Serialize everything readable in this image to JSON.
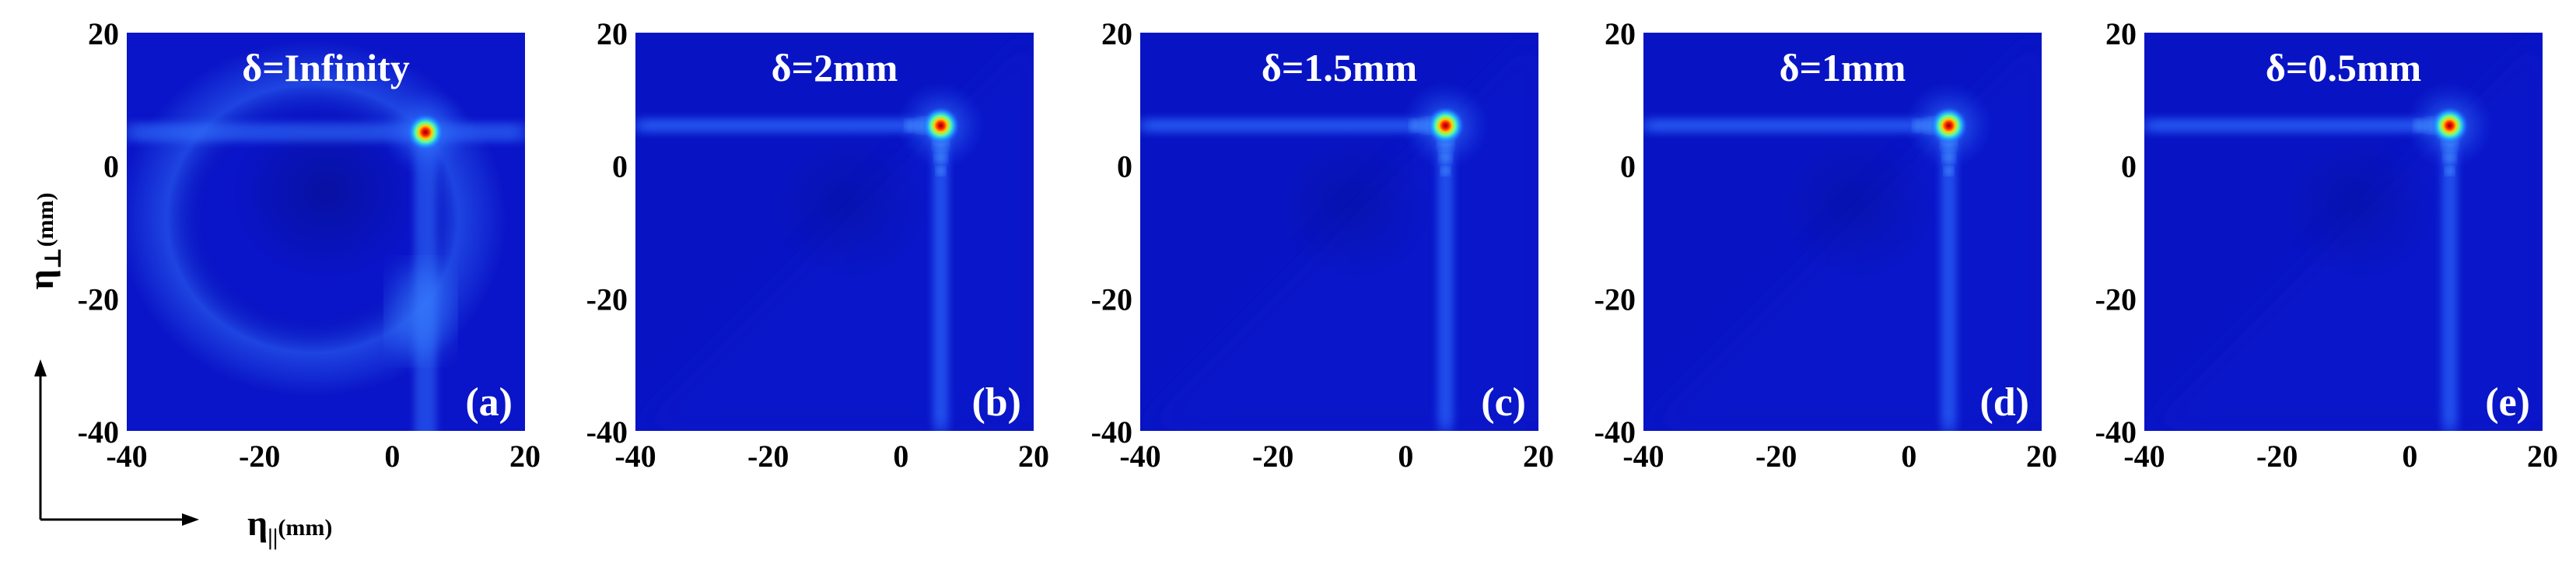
{
  "figure": {
    "ylabel": {
      "main": "η",
      "sub": "⊥",
      "unit": "(mm)"
    },
    "xlabel": {
      "main": "η",
      "sub": "||",
      "unit": "(mm)"
    }
  },
  "chart_data": [
    {
      "type": "heatmap",
      "title": "δ=Infinity",
      "panel_label": "(a)",
      "xlim": [
        -40,
        20
      ],
      "ylim": [
        -40,
        20
      ],
      "xticks": [
        -40,
        -20,
        0,
        20
      ],
      "yticks": [
        20,
        0,
        -20,
        -40
      ],
      "colormap": "jet",
      "peak": {
        "x": 5,
        "y": 5
      },
      "background_color": "#0a14c8"
    },
    {
      "type": "heatmap",
      "title": "δ=2mm",
      "panel_label": "(b)",
      "xlim": [
        -40,
        20
      ],
      "ylim": [
        -40,
        20
      ],
      "xticks": [
        -40,
        -20,
        0,
        20
      ],
      "yticks": [
        20,
        0,
        -20,
        -40
      ],
      "colormap": "jet",
      "peak": {
        "x": 6,
        "y": 6
      },
      "background_color": "#0814c4"
    },
    {
      "type": "heatmap",
      "title": "δ=1.5mm",
      "panel_label": "(c)",
      "xlim": [
        -40,
        20
      ],
      "ylim": [
        -40,
        20
      ],
      "xticks": [
        -40,
        -20,
        0,
        20
      ],
      "yticks": [
        20,
        0,
        -20,
        -40
      ],
      "colormap": "jet",
      "peak": {
        "x": 6,
        "y": 6
      },
      "background_color": "#0814c4"
    },
    {
      "type": "heatmap",
      "title": "δ=1mm",
      "panel_label": "(d)",
      "xlim": [
        -40,
        20
      ],
      "ylim": [
        -40,
        20
      ],
      "xticks": [
        -40,
        -20,
        0,
        20
      ],
      "yticks": [
        20,
        0,
        -20,
        -40
      ],
      "colormap": "jet",
      "peak": {
        "x": 6,
        "y": 6
      },
      "background_color": "#0814c4"
    },
    {
      "type": "heatmap",
      "title": "δ=0.5mm",
      "panel_label": "(e)",
      "xlim": [
        -40,
        20
      ],
      "ylim": [
        -40,
        20
      ],
      "xticks": [
        -40,
        -20,
        0,
        20
      ],
      "yticks": [
        20,
        0,
        -20,
        -40
      ],
      "colormap": "jet",
      "peak": {
        "x": 6,
        "y": 6
      },
      "background_color": "#0814c4"
    }
  ]
}
